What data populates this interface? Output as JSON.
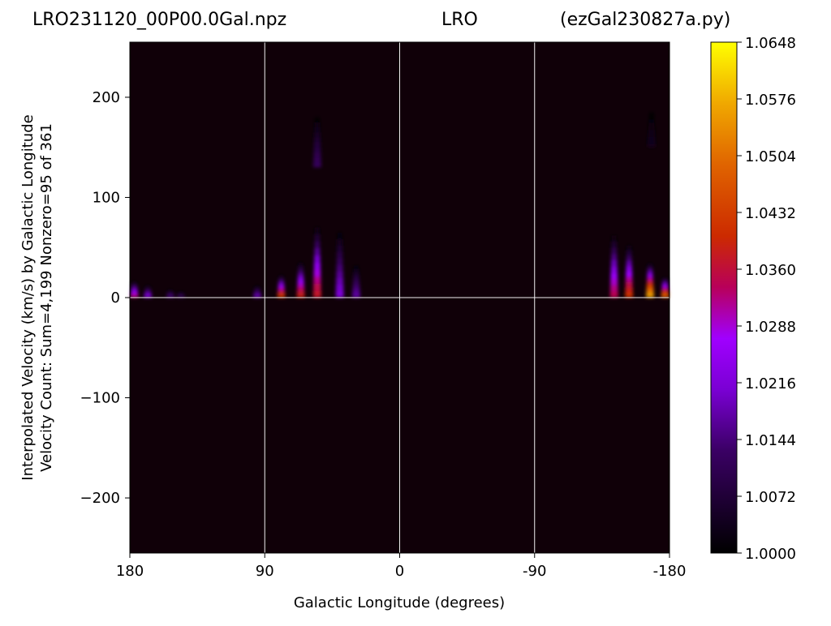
{
  "header": {
    "title_left": "LRO231120_00P00.0Gal.npz",
    "title_center": "LRO",
    "title_right": "(ezGal230827a.py)"
  },
  "chart_data": {
    "type": "heatmap",
    "xlabel": "Galactic Longitude (degrees)",
    "ylabel_line1": "Interpolated Velocity (km/s) by Galactic Longitude",
    "ylabel_line2": "Velocity Count: Sum=4,199 Nonzero=95 of 361",
    "xlim": [
      180,
      -180
    ],
    "ylim": [
      -255,
      255
    ],
    "x_ticks": [
      {
        "value": 180,
        "label": "180"
      },
      {
        "value": 90,
        "label": "90"
      },
      {
        "value": 0,
        "label": "0"
      },
      {
        "value": -90,
        "label": "-90"
      },
      {
        "value": -180,
        "label": "-180"
      }
    ],
    "y_ticks": [
      {
        "value": 200,
        "label": "200"
      },
      {
        "value": 100,
        "label": "100"
      },
      {
        "value": 0,
        "label": "0"
      },
      {
        "value": -100,
        "label": "−100"
      },
      {
        "value": -200,
        "label": "−200"
      }
    ],
    "gridlines_x": [
      90,
      0,
      -90
    ],
    "gridlines_y": [
      0
    ],
    "colormap": "gnuplot",
    "colors": {
      "background": "#100008",
      "grid": "#f0f0f0"
    },
    "colorbar": {
      "min": 1.0,
      "max": 1.0648,
      "ticks": [
        "1.0648",
        "1.0576",
        "1.0504",
        "1.0432",
        "1.0360",
        "1.0288",
        "1.0216",
        "1.0144",
        "1.0072",
        "1.0000"
      ]
    },
    "features": [
      {
        "lon": 177,
        "vmin": 0,
        "vmax": 16,
        "peak": 1.034
      },
      {
        "lon": 168,
        "vmin": 0,
        "vmax": 12,
        "peak": 1.024
      },
      {
        "lon": 153,
        "vmin": 0,
        "vmax": 8,
        "peak": 1.016
      },
      {
        "lon": 146,
        "vmin": 0,
        "vmax": 6,
        "peak": 1.014
      },
      {
        "lon": 95,
        "vmin": 0,
        "vmax": 12,
        "peak": 1.02
      },
      {
        "lon": 79,
        "vmin": 0,
        "vmax": 22,
        "peak": 1.044
      },
      {
        "lon": 66,
        "vmin": 0,
        "vmax": 35,
        "peak": 1.04
      },
      {
        "lon": 55,
        "vmin": 0,
        "vmax": 70,
        "peak": 1.038
      },
      {
        "lon": 55,
        "vmin": 130,
        "vmax": 180,
        "peak": 1.012
      },
      {
        "lon": 40,
        "vmin": 0,
        "vmax": 65,
        "peak": 1.022
      },
      {
        "lon": 29,
        "vmin": 0,
        "vmax": 32,
        "peak": 1.018
      },
      {
        "lon": -143,
        "vmin": 0,
        "vmax": 62,
        "peak": 1.035
      },
      {
        "lon": -153,
        "vmin": 0,
        "vmax": 52,
        "peak": 1.042
      },
      {
        "lon": -167,
        "vmin": 0,
        "vmax": 34,
        "peak": 1.058
      },
      {
        "lon": -177,
        "vmin": 0,
        "vmax": 20,
        "peak": 1.05
      },
      {
        "lon": -168,
        "vmin": 150,
        "vmax": 185,
        "peak": 1.004
      }
    ]
  }
}
